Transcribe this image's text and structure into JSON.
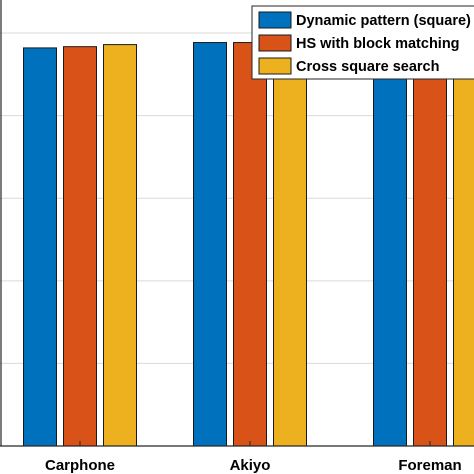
{
  "chart_data": {
    "type": "bar",
    "title": "",
    "xlabel": "",
    "ylabel": "",
    "categories": [
      "Carphone",
      "Akiyo",
      "Foreman"
    ],
    "ylim": [
      0,
      1.08
    ],
    "grid": true,
    "legend_position": "top-right",
    "series": [
      {
        "name": "Dynamic pattern (square)",
        "color": "#0072BD",
        "values": [
          0.964,
          0.977,
          0.973
        ]
      },
      {
        "name": "HS with block matching",
        "color": "#D95319",
        "values": [
          0.967,
          0.977,
          0.973
        ]
      },
      {
        "name": "Cross square search",
        "color": "#EDB120",
        "values": [
          0.972,
          0.99,
          0.973
        ]
      }
    ]
  }
}
